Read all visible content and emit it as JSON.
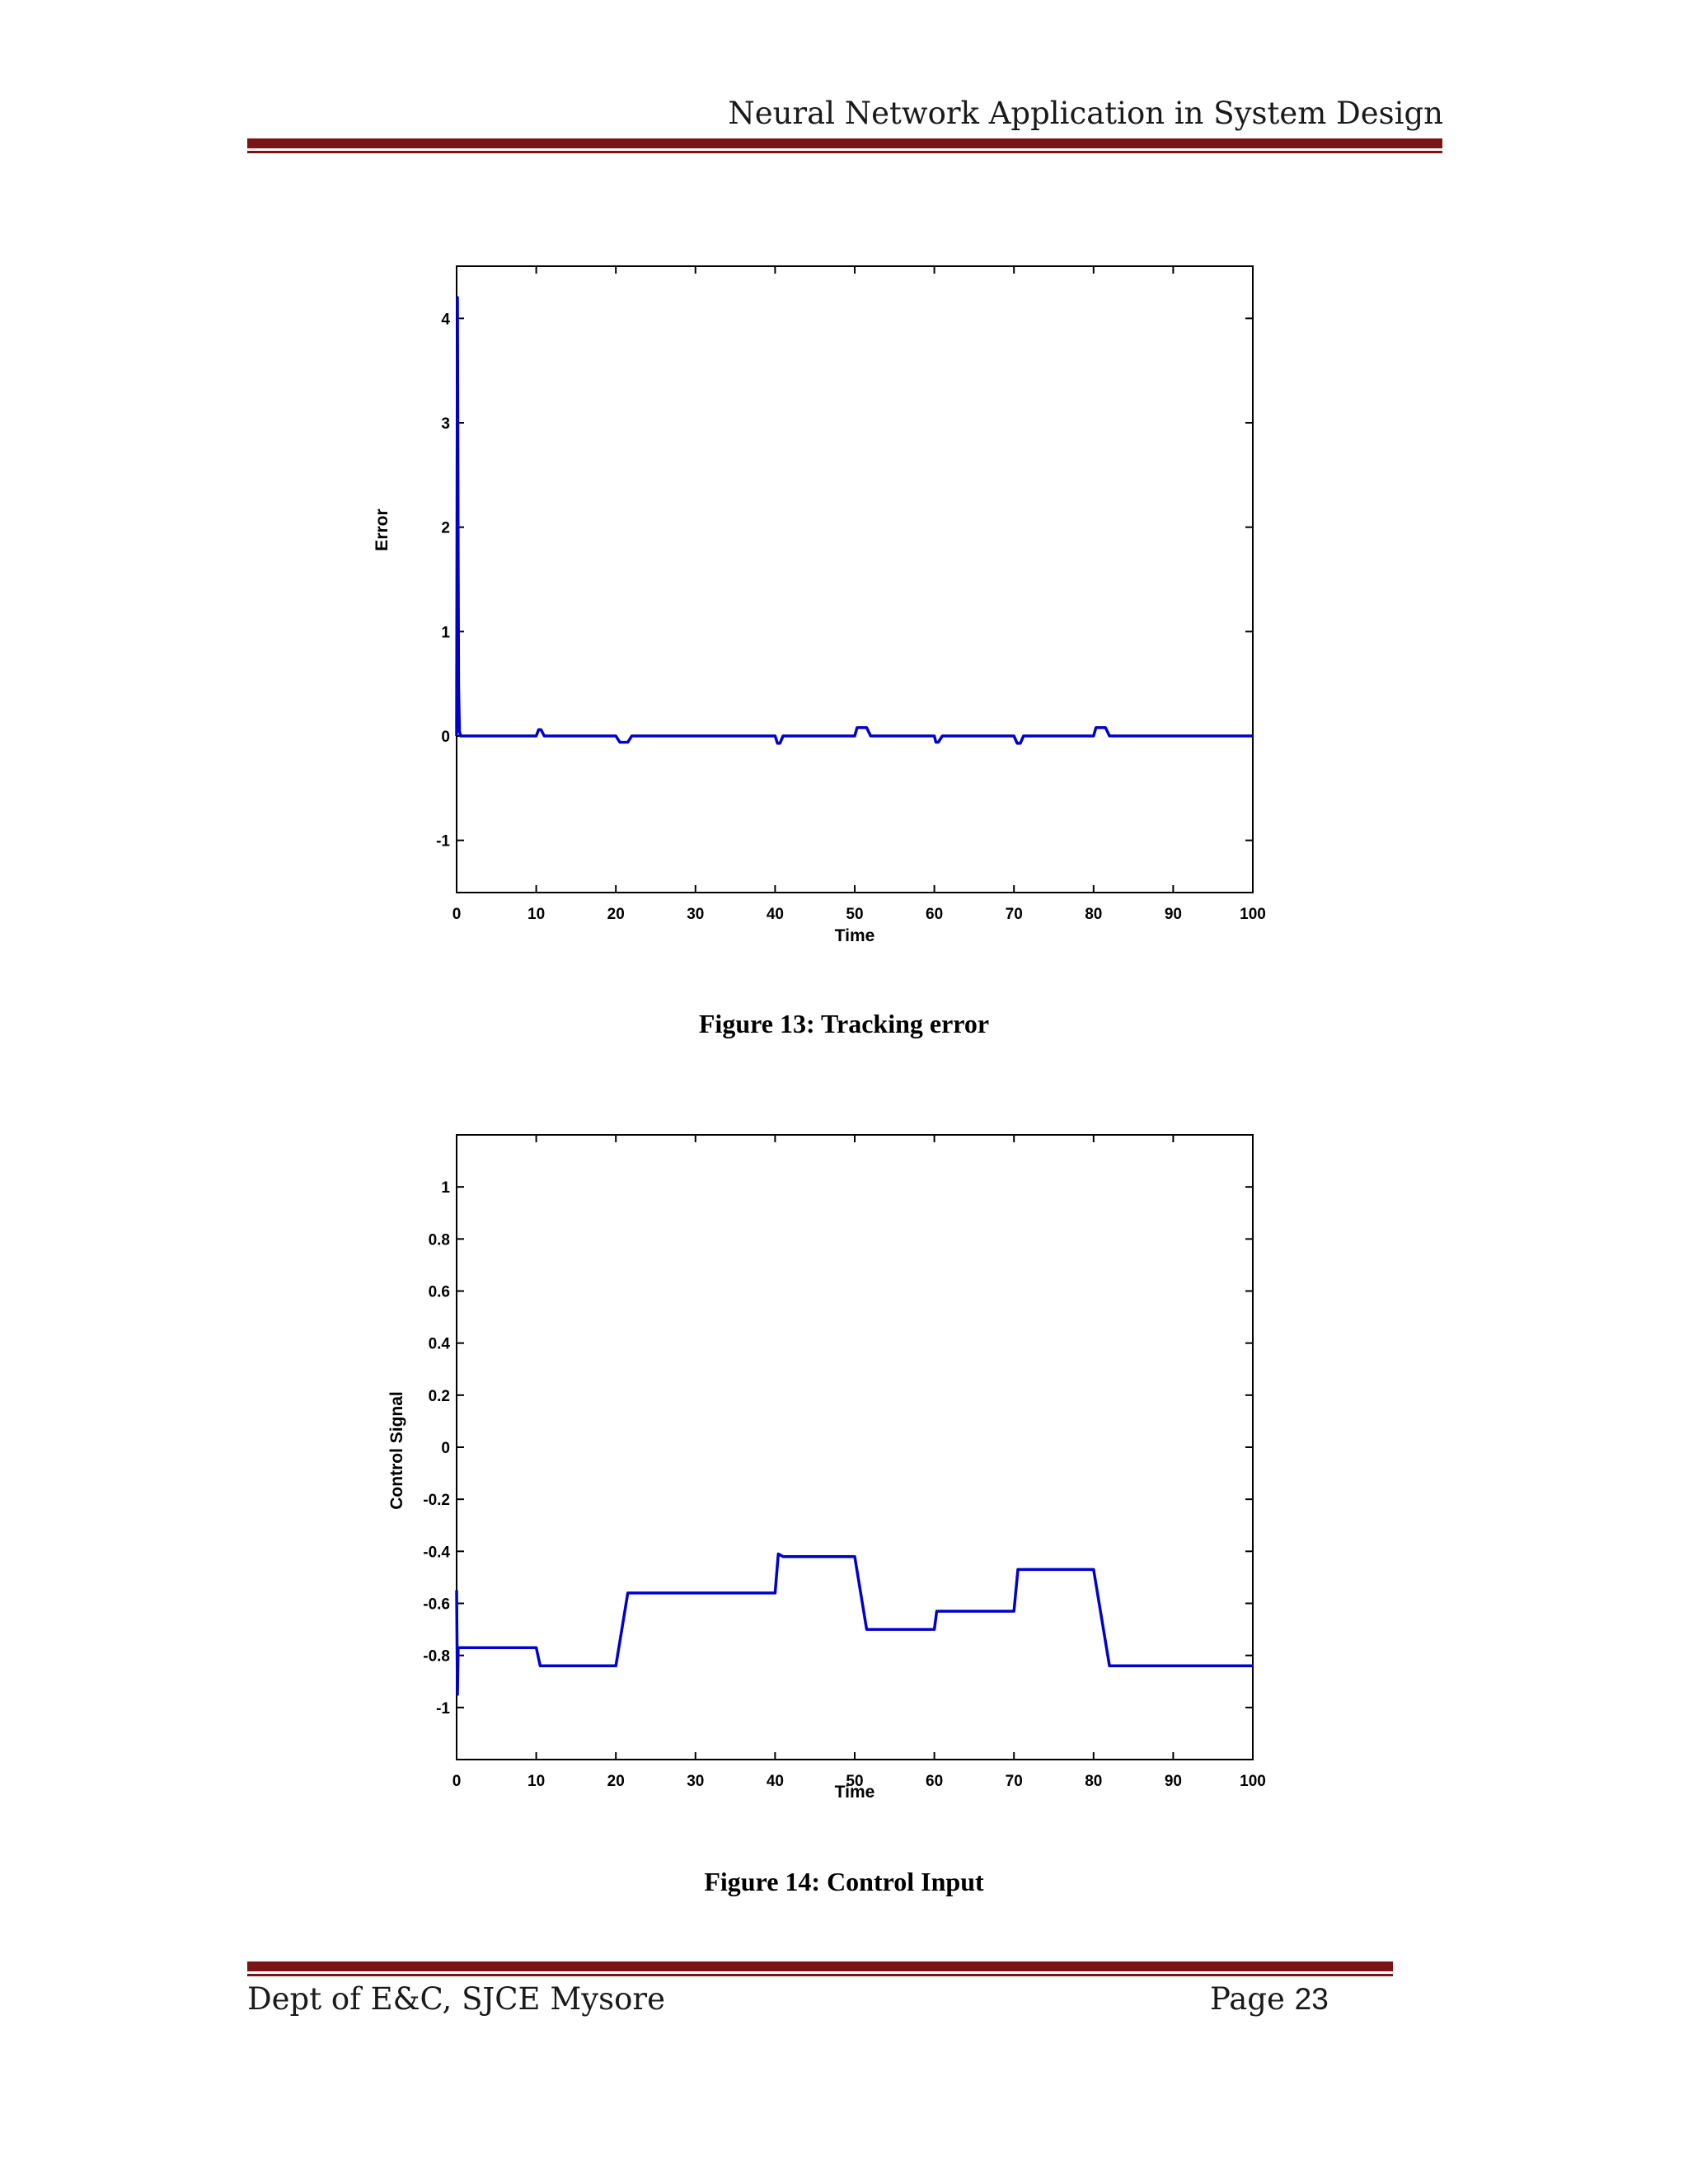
{
  "header": {
    "title": "Neural Network Application in System Design"
  },
  "figures": [
    {
      "caption": "Figure 13: Tracking error"
    },
    {
      "caption": "Figure 14: Control Input"
    }
  ],
  "footer": {
    "left": "Dept of E&C, SJCE Mysore",
    "page_label": "Page",
    "page_number": "23"
  },
  "colors": {
    "rule": "#7b1416",
    "series": "#0000cc"
  },
  "chart_data": [
    {
      "type": "line",
      "title": "",
      "xlabel": "Time",
      "ylabel": "Error",
      "xlim": [
        0,
        100
      ],
      "ylim": [
        -1.5,
        4.5
      ],
      "xticks": [
        0,
        10,
        20,
        30,
        40,
        50,
        60,
        70,
        80,
        90,
        100
      ],
      "yticks": [
        -1,
        0,
        1,
        2,
        3,
        4
      ],
      "grid": false,
      "series": [
        {
          "x": [
            0,
            0.1,
            0.2,
            0.25,
            0.35,
            0.5,
            1,
            10,
            10.3,
            10.6,
            11,
            20,
            20.5,
            21.5,
            22,
            40,
            40.3,
            40.6,
            41,
            50,
            50.3,
            51.5,
            52,
            60,
            60.2,
            60.5,
            61,
            70,
            70.4,
            70.8,
            71.2,
            80,
            80.3,
            81.5,
            82,
            90,
            100
          ],
          "y": [
            0,
            4.2,
            1.7,
            0.5,
            0.05,
            0,
            0,
            0,
            0.06,
            0.06,
            0,
            0,
            -0.06,
            -0.06,
            0,
            0,
            -0.07,
            -0.07,
            0,
            0,
            0.08,
            0.08,
            0,
            0,
            -0.06,
            -0.06,
            0,
            0,
            -0.07,
            -0.07,
            0,
            0,
            0.08,
            0.08,
            0,
            0,
            0
          ]
        }
      ]
    },
    {
      "type": "line",
      "title": "",
      "xlabel": "Time",
      "ylabel": "Control Signal",
      "xlim": [
        0,
        100
      ],
      "ylim": [
        -1.2,
        1.2
      ],
      "xticks": [
        0,
        10,
        20,
        30,
        40,
        50,
        60,
        70,
        80,
        90,
        100
      ],
      "yticks": [
        1,
        0.8,
        0.6,
        0.4,
        0.2,
        0,
        -0.2,
        -0.4,
        -0.6,
        -0.8,
        -1
      ],
      "grid": false,
      "series": [
        {
          "x": [
            0,
            0.1,
            0.2,
            10,
            10.5,
            20,
            21.5,
            40,
            40.4,
            41,
            50,
            51.5,
            60,
            60.3,
            70,
            70.5,
            80,
            82,
            90,
            100
          ],
          "y": [
            -0.55,
            -0.95,
            -0.77,
            -0.77,
            -0.84,
            -0.84,
            -0.56,
            -0.56,
            -0.41,
            -0.42,
            -0.42,
            -0.7,
            -0.7,
            -0.63,
            -0.63,
            -0.47,
            -0.47,
            -0.84,
            -0.84,
            -0.84
          ]
        }
      ]
    }
  ]
}
